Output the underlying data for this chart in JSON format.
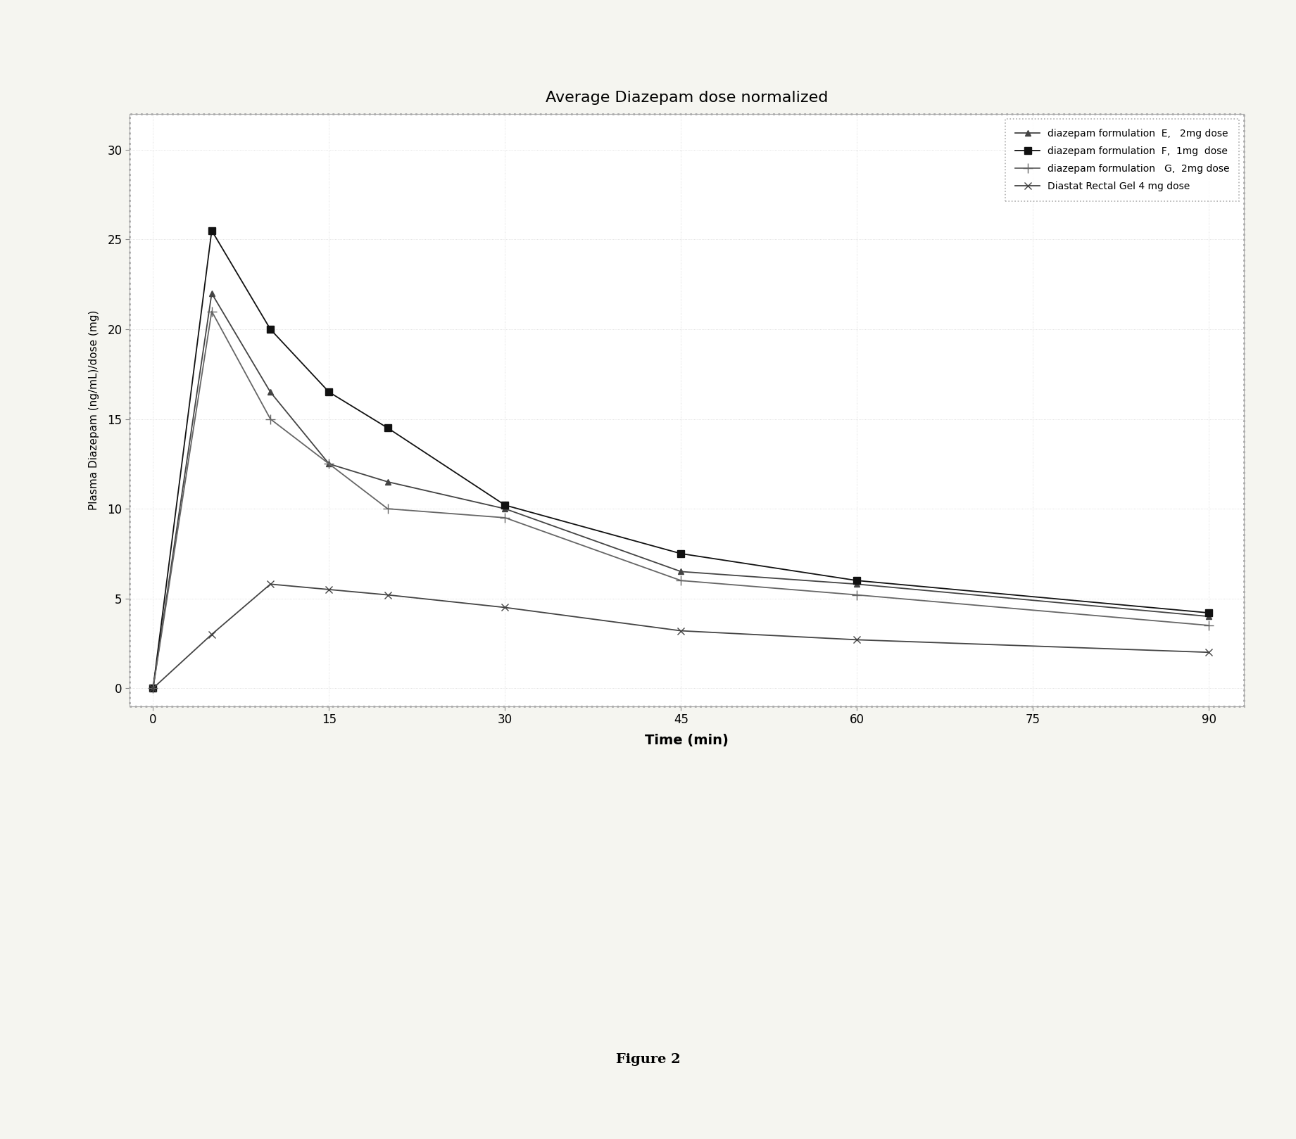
{
  "title": "Average Diazepam dose normalized",
  "xlabel": "Time (min)",
  "ylabel": "Plasma Diazepam (ng/mL)/dose (mg)",
  "xlim": [
    -2,
    92
  ],
  "ylim": [
    -1,
    32
  ],
  "xticks": [
    0,
    15,
    30,
    45,
    60,
    75,
    90
  ],
  "yticks": [
    0,
    5,
    10,
    15,
    20,
    25,
    30
  ],
  "series": [
    {
      "label": "diazepam formulation  E,   2mg dose",
      "x": [
        0,
        5,
        10,
        15,
        20,
        30,
        45,
        60,
        90
      ],
      "y": [
        0,
        22.0,
        16.5,
        12.5,
        11.5,
        10.0,
        6.5,
        5.8,
        4.0
      ],
      "marker": "^",
      "linestyle": "-",
      "color": "#444444",
      "linewidth": 1.3,
      "markersize": 6
    },
    {
      "label": "diazepam formulation  F,  1mg  dose",
      "x": [
        0,
        5,
        10,
        15,
        20,
        30,
        45,
        60,
        90
      ],
      "y": [
        0,
        25.5,
        20.0,
        16.5,
        14.5,
        10.2,
        7.5,
        6.0,
        4.2
      ],
      "marker": "s",
      "linestyle": "-",
      "color": "#111111",
      "linewidth": 1.3,
      "markersize": 7
    },
    {
      "label": "diazepam formulation   G,  2mg dose",
      "x": [
        0,
        5,
        10,
        15,
        20,
        30,
        45,
        60,
        90
      ],
      "y": [
        0,
        21.0,
        15.0,
        12.5,
        10.0,
        9.5,
        6.0,
        5.2,
        3.5
      ],
      "marker": "+",
      "linestyle": "-",
      "color": "#666666",
      "linewidth": 1.3,
      "markersize": 10
    },
    {
      "label": "Diastat Rectal Gel 4 mg dose",
      "x": [
        0,
        5,
        10,
        15,
        20,
        30,
        45,
        60,
        90
      ],
      "y": [
        0,
        3.0,
        5.8,
        5.5,
        5.2,
        4.5,
        3.2,
        2.7,
        2.0
      ],
      "marker": "x",
      "linestyle": "-",
      "color": "#444444",
      "linewidth": 1.3,
      "markersize": 7
    }
  ],
  "legend_loc": "upper right",
  "figure_caption": "Figure 2",
  "background_color": "#f5f5f0",
  "plot_bg_color": "#ffffff"
}
